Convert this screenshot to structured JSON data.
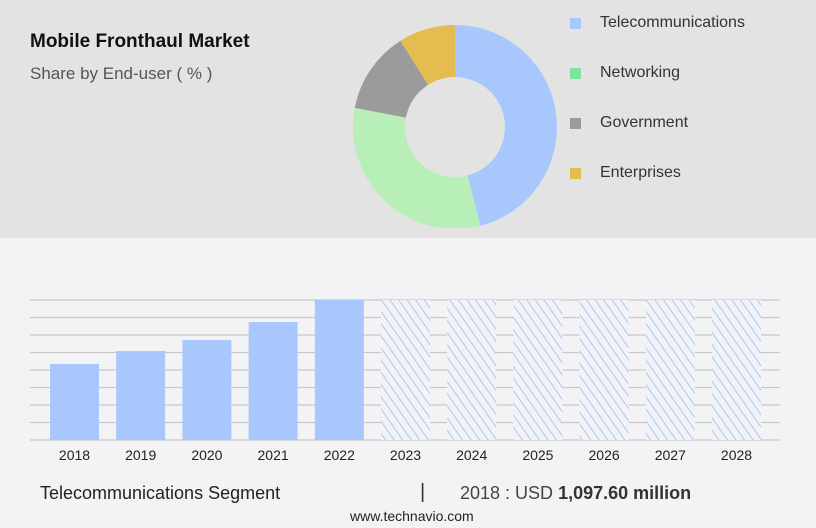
{
  "title": "Mobile Fronthaul Market",
  "subtitle": "Share by End-user ( % )",
  "footer": {
    "segment": "Telecommunications Segment",
    "separator": "|",
    "year_label": "2018 : USD",
    "value": "1,097.60 million",
    "website": "www.technavio.com"
  },
  "chart_data": [
    {
      "type": "pie",
      "donut": true,
      "title": "Mobile Fronthaul Market",
      "subtitle": "Share by End-user ( % )",
      "legend_placement": "right",
      "slices": [
        {
          "name": "Telecommunications",
          "value": 46,
          "color": "#a8c8fd"
        },
        {
          "name": "Networking",
          "value": 32,
          "color": "#b8efb8"
        },
        {
          "name": "Government",
          "value": 13,
          "color": "#9b9b9b"
        },
        {
          "name": "Enterprises",
          "value": 9,
          "color": "#e5bc50"
        }
      ],
      "legend_colors": [
        "#a8c8fd",
        "#7ee39a",
        "#9b9b9b",
        "#e5bc50"
      ]
    },
    {
      "type": "bar",
      "categories": [
        "2018",
        "2019",
        "2020",
        "2021",
        "2022",
        "2023",
        "2024",
        "2025",
        "2026",
        "2027",
        "2028"
      ],
      "values": [
        1097.6,
        1285,
        1444,
        1704,
        2022,
        null,
        null,
        null,
        null,
        null,
        null
      ],
      "forecast_categories": [
        "2023",
        "2024",
        "2025",
        "2026",
        "2027",
        "2028"
      ],
      "ylim": [
        0,
        2022
      ],
      "grid": true,
      "color": "#a8c8fd",
      "xlabel": "",
      "ylabel": ""
    }
  ]
}
